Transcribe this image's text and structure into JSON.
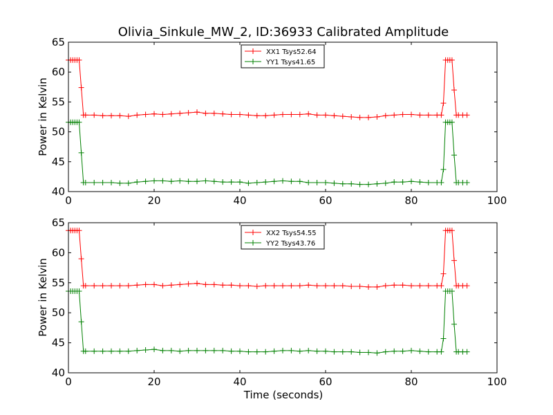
{
  "figure": {
    "title": "Olivia_Sinkule_MW_2, ID:36933 Calibrated Amplitude",
    "shared_xlabel": "Time (seconds)"
  },
  "colors": {
    "xx": "#ff0000",
    "yy": "#008000",
    "axes": "#000000",
    "background": "#ffffff"
  },
  "chart_data": [
    {
      "type": "line",
      "title": "Olivia_Sinkule_MW_2, ID:36933 Calibrated Amplitude",
      "xlabel": "",
      "ylabel": "Power in Kelvin",
      "xlim": [
        0,
        100
      ],
      "ylim": [
        40,
        65
      ],
      "xticks": [
        "0",
        "20",
        "40",
        "60",
        "80",
        "100"
      ],
      "yticks": [
        "40",
        "45",
        "50",
        "55",
        "60",
        "65"
      ],
      "grid": false,
      "legend_position": "top-center",
      "marker": "+",
      "series": [
        {
          "name": "XX1 Tsys52.64",
          "color": "#ff0000",
          "points": [
            [
              0,
              62
            ],
            [
              0.5,
              62
            ],
            [
              1,
              62
            ],
            [
              1.5,
              62
            ],
            [
              2,
              62
            ],
            [
              2.5,
              62
            ],
            [
              3,
              57.4
            ],
            [
              3.5,
              52.8
            ],
            [
              4,
              52.8
            ],
            [
              6,
              52.8
            ],
            [
              8,
              52.7
            ],
            [
              10,
              52.7
            ],
            [
              12,
              52.7
            ],
            [
              14,
              52.6
            ],
            [
              16,
              52.8
            ],
            [
              18,
              52.9
            ],
            [
              20,
              53
            ],
            [
              22,
              52.9
            ],
            [
              24,
              53
            ],
            [
              26,
              53.1
            ],
            [
              28,
              53.2
            ],
            [
              30,
              53.3
            ],
            [
              32,
              53.1
            ],
            [
              34,
              53.1
            ],
            [
              36,
              53
            ],
            [
              38,
              52.9
            ],
            [
              40,
              52.9
            ],
            [
              42,
              52.8
            ],
            [
              44,
              52.7
            ],
            [
              46,
              52.7
            ],
            [
              48,
              52.8
            ],
            [
              50,
              52.9
            ],
            [
              52,
              52.9
            ],
            [
              54,
              52.9
            ],
            [
              56,
              53
            ],
            [
              58,
              52.8
            ],
            [
              60,
              52.8
            ],
            [
              62,
              52.7
            ],
            [
              64,
              52.6
            ],
            [
              66,
              52.5
            ],
            [
              68,
              52.4
            ],
            [
              70,
              52.4
            ],
            [
              72,
              52.5
            ],
            [
              74,
              52.7
            ],
            [
              76,
              52.8
            ],
            [
              78,
              52.9
            ],
            [
              80,
              52.9
            ],
            [
              82,
              52.8
            ],
            [
              84,
              52.8
            ],
            [
              86,
              52.8
            ],
            [
              87,
              52.8
            ],
            [
              87.5,
              54.8
            ],
            [
              88,
              62
            ],
            [
              88.5,
              62
            ],
            [
              89,
              62
            ],
            [
              89.5,
              62
            ],
            [
              90,
              57
            ],
            [
              90.5,
              52.8
            ],
            [
              91,
              52.8
            ],
            [
              92,
              52.8
            ],
            [
              93,
              52.8
            ]
          ]
        },
        {
          "name": "YY1 Tsys41.65",
          "color": "#008000",
          "points": [
            [
              0,
              51.6
            ],
            [
              0.5,
              51.6
            ],
            [
              1,
              51.6
            ],
            [
              1.5,
              51.6
            ],
            [
              2,
              51.6
            ],
            [
              2.5,
              51.6
            ],
            [
              3,
              46.5
            ],
            [
              3.5,
              41.5
            ],
            [
              4,
              41.5
            ],
            [
              6,
              41.5
            ],
            [
              8,
              41.5
            ],
            [
              10,
              41.5
            ],
            [
              12,
              41.4
            ],
            [
              14,
              41.4
            ],
            [
              16,
              41.6
            ],
            [
              18,
              41.7
            ],
            [
              20,
              41.8
            ],
            [
              22,
              41.8
            ],
            [
              24,
              41.7
            ],
            [
              26,
              41.8
            ],
            [
              28,
              41.7
            ],
            [
              30,
              41.7
            ],
            [
              32,
              41.8
            ],
            [
              34,
              41.7
            ],
            [
              36,
              41.6
            ],
            [
              38,
              41.6
            ],
            [
              40,
              41.6
            ],
            [
              42,
              41.4
            ],
            [
              44,
              41.5
            ],
            [
              46,
              41.6
            ],
            [
              48,
              41.7
            ],
            [
              50,
              41.8
            ],
            [
              52,
              41.7
            ],
            [
              54,
              41.7
            ],
            [
              56,
              41.5
            ],
            [
              58,
              41.5
            ],
            [
              60,
              41.5
            ],
            [
              62,
              41.4
            ],
            [
              64,
              41.3
            ],
            [
              66,
              41.3
            ],
            [
              68,
              41.2
            ],
            [
              70,
              41.2
            ],
            [
              72,
              41.3
            ],
            [
              74,
              41.4
            ],
            [
              76,
              41.6
            ],
            [
              78,
              41.6
            ],
            [
              80,
              41.7
            ],
            [
              82,
              41.6
            ],
            [
              84,
              41.5
            ],
            [
              86,
              41.5
            ],
            [
              87,
              41.5
            ],
            [
              87.5,
              43.7
            ],
            [
              88,
              51.6
            ],
            [
              88.5,
              51.6
            ],
            [
              89,
              51.6
            ],
            [
              89.5,
              51.6
            ],
            [
              90,
              46.1
            ],
            [
              90.5,
              41.5
            ],
            [
              91,
              41.5
            ],
            [
              92,
              41.5
            ],
            [
              93,
              41.5
            ]
          ]
        }
      ]
    },
    {
      "type": "line",
      "title": "",
      "xlabel": "Time (seconds)",
      "ylabel": "Power in Kelvin",
      "xlim": [
        0,
        100
      ],
      "ylim": [
        40,
        65
      ],
      "xticks": [
        "0",
        "20",
        "40",
        "60",
        "80",
        "100"
      ],
      "yticks": [
        "40",
        "45",
        "50",
        "55",
        "60",
        "65"
      ],
      "grid": false,
      "legend_position": "top-center",
      "marker": "+",
      "series": [
        {
          "name": "XX2 Tsys54.55",
          "color": "#ff0000",
          "points": [
            [
              0,
              63.7
            ],
            [
              0.5,
              63.7
            ],
            [
              1,
              63.7
            ],
            [
              1.5,
              63.7
            ],
            [
              2,
              63.7
            ],
            [
              2.5,
              63.7
            ],
            [
              3,
              59
            ],
            [
              3.5,
              54.5
            ],
            [
              4,
              54.5
            ],
            [
              6,
              54.5
            ],
            [
              8,
              54.5
            ],
            [
              10,
              54.5
            ],
            [
              12,
              54.5
            ],
            [
              14,
              54.5
            ],
            [
              16,
              54.6
            ],
            [
              18,
              54.7
            ],
            [
              20,
              54.7
            ],
            [
              22,
              54.5
            ],
            [
              24,
              54.6
            ],
            [
              26,
              54.7
            ],
            [
              28,
              54.8
            ],
            [
              30,
              54.9
            ],
            [
              32,
              54.7
            ],
            [
              34,
              54.7
            ],
            [
              36,
              54.6
            ],
            [
              38,
              54.6
            ],
            [
              40,
              54.5
            ],
            [
              42,
              54.5
            ],
            [
              44,
              54.4
            ],
            [
              46,
              54.5
            ],
            [
              48,
              54.5
            ],
            [
              50,
              54.5
            ],
            [
              52,
              54.5
            ],
            [
              54,
              54.5
            ],
            [
              56,
              54.6
            ],
            [
              58,
              54.5
            ],
            [
              60,
              54.5
            ],
            [
              62,
              54.5
            ],
            [
              64,
              54.5
            ],
            [
              66,
              54.4
            ],
            [
              68,
              54.4
            ],
            [
              70,
              54.3
            ],
            [
              72,
              54.3
            ],
            [
              74,
              54.5
            ],
            [
              76,
              54.6
            ],
            [
              78,
              54.6
            ],
            [
              80,
              54.5
            ],
            [
              82,
              54.5
            ],
            [
              84,
              54.5
            ],
            [
              86,
              54.5
            ],
            [
              87,
              54.5
            ],
            [
              87.5,
              56.5
            ],
            [
              88,
              63.7
            ],
            [
              88.5,
              63.7
            ],
            [
              89,
              63.7
            ],
            [
              89.5,
              63.7
            ],
            [
              90,
              58.7
            ],
            [
              90.5,
              54.5
            ],
            [
              91,
              54.5
            ],
            [
              92,
              54.5
            ],
            [
              93,
              54.5
            ]
          ]
        },
        {
          "name": "YY2 Tsys43.76",
          "color": "#008000",
          "points": [
            [
              0,
              53.6
            ],
            [
              0.5,
              53.6
            ],
            [
              1,
              53.6
            ],
            [
              1.5,
              53.6
            ],
            [
              2,
              53.6
            ],
            [
              2.5,
              53.6
            ],
            [
              3,
              48.5
            ],
            [
              3.5,
              43.6
            ],
            [
              4,
              43.6
            ],
            [
              6,
              43.6
            ],
            [
              8,
              43.6
            ],
            [
              10,
              43.6
            ],
            [
              12,
              43.6
            ],
            [
              14,
              43.6
            ],
            [
              16,
              43.7
            ],
            [
              18,
              43.8
            ],
            [
              20,
              43.9
            ],
            [
              22,
              43.7
            ],
            [
              24,
              43.7
            ],
            [
              26,
              43.6
            ],
            [
              28,
              43.7
            ],
            [
              30,
              43.7
            ],
            [
              32,
              43.7
            ],
            [
              34,
              43.7
            ],
            [
              36,
              43.7
            ],
            [
              38,
              43.6
            ],
            [
              40,
              43.6
            ],
            [
              42,
              43.5
            ],
            [
              44,
              43.5
            ],
            [
              46,
              43.5
            ],
            [
              48,
              43.6
            ],
            [
              50,
              43.7
            ],
            [
              52,
              43.7
            ],
            [
              54,
              43.6
            ],
            [
              56,
              43.7
            ],
            [
              58,
              43.6
            ],
            [
              60,
              43.6
            ],
            [
              62,
              43.5
            ],
            [
              64,
              43.5
            ],
            [
              66,
              43.5
            ],
            [
              68,
              43.4
            ],
            [
              70,
              43.4
            ],
            [
              72,
              43.3
            ],
            [
              74,
              43.5
            ],
            [
              76,
              43.6
            ],
            [
              78,
              43.6
            ],
            [
              80,
              43.7
            ],
            [
              82,
              43.6
            ],
            [
              84,
              43.5
            ],
            [
              86,
              43.5
            ],
            [
              87,
              43.5
            ],
            [
              87.5,
              45.7
            ],
            [
              88,
              53.6
            ],
            [
              88.5,
              53.6
            ],
            [
              89,
              53.6
            ],
            [
              89.5,
              53.6
            ],
            [
              90,
              48.1
            ],
            [
              90.5,
              43.5
            ],
            [
              91,
              43.5
            ],
            [
              92,
              43.5
            ],
            [
              93,
              43.5
            ]
          ]
        }
      ]
    }
  ]
}
